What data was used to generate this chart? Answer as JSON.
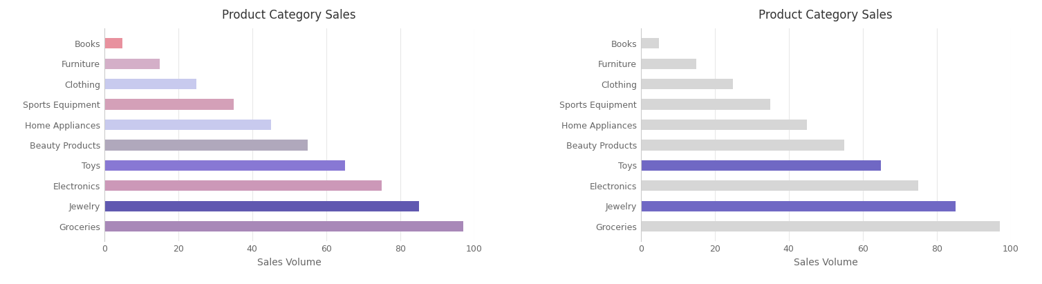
{
  "title": "Product Category Sales",
  "xlabel": "Sales Volume",
  "categories": [
    "Books",
    "Furniture",
    "Clothing",
    "Sports Equipment",
    "Home Appliances",
    "Beauty Products",
    "Toys",
    "Electronics",
    "Jewelry",
    "Groceries"
  ],
  "values": [
    5,
    15,
    25,
    35,
    45,
    55,
    65,
    75,
    85,
    97
  ],
  "colors_left": [
    "#e8919e",
    "#d4afc8",
    "#c8caee",
    "#d4a0b8",
    "#c8caee",
    "#b0a8bc",
    "#8878d4",
    "#cc98b8",
    "#6058b0",
    "#a888b8"
  ],
  "highlighted_categories": [
    "Toys",
    "Jewelry"
  ],
  "color_gray": "#d6d6d6",
  "color_purple": "#7068c4",
  "xlim": [
    0,
    100
  ],
  "xticks": [
    0,
    20,
    40,
    60,
    80,
    100
  ],
  "figsize": [
    15.07,
    4.11
  ],
  "dpi": 100,
  "background_color": "#ffffff",
  "grid_color": "#e8e8e8",
  "text_color": "#666666",
  "title_color": "#333333",
  "bar_height": 0.52,
  "title_fontsize": 12,
  "label_fontsize": 9,
  "axis_label_fontsize": 10
}
